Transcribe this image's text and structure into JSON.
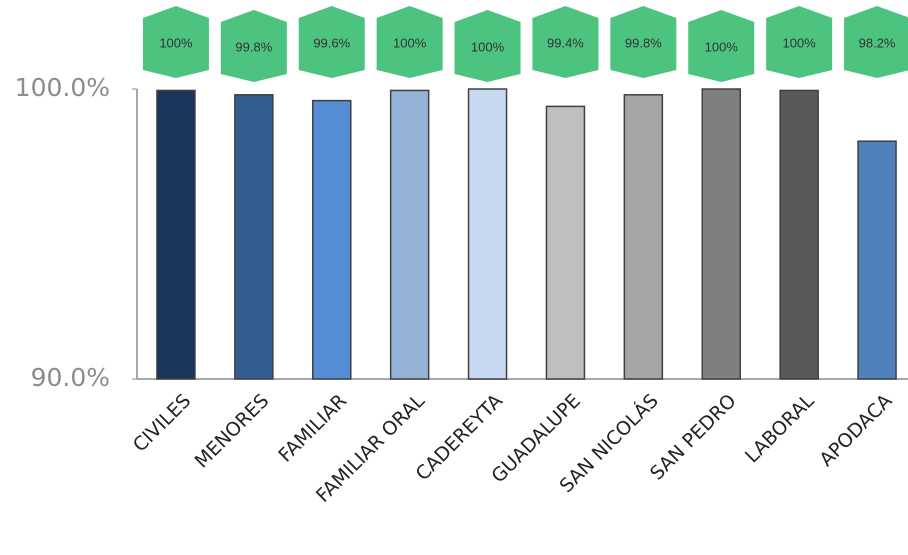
{
  "chart_data": {
    "type": "bar",
    "categories": [
      "CIVILES",
      "MENORES",
      "FAMILIAR",
      "FAMILIAR ORAL",
      "CADEREYTA",
      "GUADALUPE",
      "SAN NICOLÁS",
      "SAN PEDRO",
      "LABORAL",
      "APODACA"
    ],
    "values": [
      99.95,
      99.8,
      99.6,
      99.95,
      100,
      99.4,
      99.8,
      100,
      99.95,
      98.2
    ],
    "value_labels": [
      "100%",
      "99.8%",
      "99.6%",
      "100%",
      "100%",
      "99.4%",
      "99.8%",
      "100%",
      "100%",
      "98.2%"
    ],
    "colors": [
      "#1b365d",
      "#335d8f",
      "#548dd4",
      "#95b3d7",
      "#c6d9f1",
      "#bfbfbf",
      "#a6a6a6",
      "#7f7f7f",
      "#595959",
      "#4f81bd"
    ],
    "label_color": "#4cc47f",
    "ylim": [
      90,
      100
    ],
    "yticks": [
      {
        "value": 90,
        "label": "90.0%"
      },
      {
        "value": 100,
        "label": "100.0%"
      }
    ]
  }
}
